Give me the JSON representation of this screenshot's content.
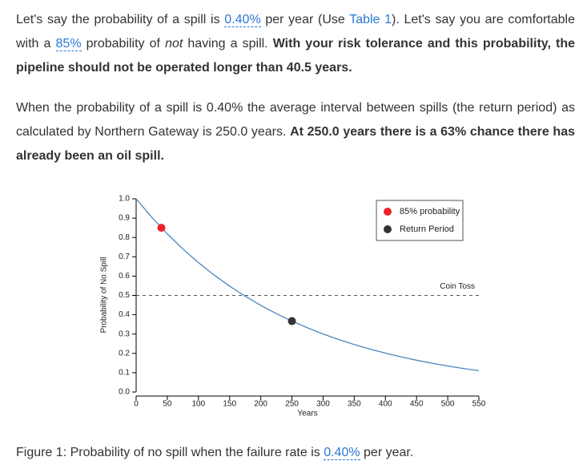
{
  "paragraphs": [
    [
      "Let's say the probability of a spill is ",
      "0.40%",
      " per year (Use ",
      "Table 1",
      "). Let's say you are comfortable with a ",
      "85%",
      " probability of ",
      "not",
      " having a spill. ",
      "With your risk tolerance and this probability, the pipeline should not be operated longer than 40.5 years."
    ],
    [
      "When the probability of a spill is 0.40% the average interval between spills (the return period) as calculated by Northern Gateway is 250.0 years. ",
      "At 250.0 years there is a 63% chance there has already been an oil spill."
    ]
  ],
  "caption": [
    "Figure 1: Probability of no spill when the failure rate is ",
    "0.40%",
    " per year."
  ],
  "chart_data": {
    "type": "line",
    "x_label": "Years",
    "y_label": "Probability of No Spill",
    "x": [
      0,
      25,
      50,
      75,
      100,
      125,
      150,
      175,
      200,
      225,
      250,
      275,
      300,
      325,
      350,
      375,
      400,
      425,
      450,
      475,
      500,
      525,
      550
    ],
    "values": [
      1,
      0.9047,
      0.8184,
      0.7404,
      0.6698,
      0.606,
      0.5481,
      0.4959,
      0.4486,
      0.4058,
      0.3671,
      0.3322,
      0.3005,
      0.2718,
      0.2459,
      0.2225,
      0.2013,
      0.1821,
      0.1647,
      0.149,
      0.1348,
      0.122,
      0.1103
    ],
    "color": "#4a86c0",
    "points": [
      {
        "name": "85% probability",
        "x": 40.5,
        "y": 0.85,
        "color": "#f0232a"
      },
      {
        "name": "Return Period",
        "x": 250,
        "y": 0.3671,
        "color": "#333333"
      }
    ],
    "reference_line": {
      "label": "Coin Toss",
      "value": 0.5
    },
    "xlim": [
      0,
      550
    ],
    "ylim": [
      0,
      1
    ],
    "xticks": [
      0,
      50,
      100,
      150,
      200,
      250,
      300,
      350,
      400,
      450,
      500,
      550
    ],
    "yticks": [
      {
        "value": 0,
        "label": "0.0"
      },
      0.1,
      0.2,
      0.3,
      0.4,
      0.5,
      0.6,
      0.7,
      0.8,
      0.9,
      {
        "value": 1,
        "label": "1.0"
      }
    ]
  }
}
